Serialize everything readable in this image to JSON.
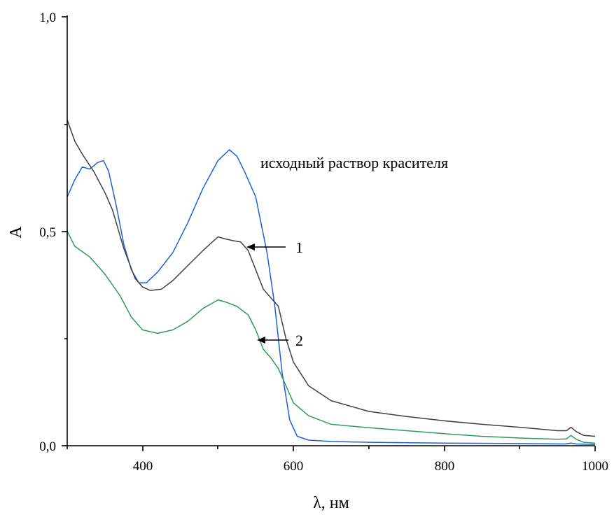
{
  "chart_data": {
    "type": "line",
    "xlabel": "λ, нм",
    "ylabel": "A",
    "xlim": [
      300,
      1000
    ],
    "ylim": [
      0,
      1.0
    ],
    "x_ticks": [
      "400",
      "600",
      "800",
      "1000"
    ],
    "y_ticks": [
      "0,0",
      "0,5",
      "1,0"
    ],
    "grid": false,
    "legend": "none",
    "annotations": [
      {
        "text": "исходный раствор красителя"
      },
      {
        "text": "1"
      },
      {
        "text": "2"
      }
    ],
    "series": [
      {
        "color": "#1f5fd6",
        "points": [
          [
            300,
            0.58
          ],
          [
            310,
            0.62
          ],
          [
            320,
            0.65
          ],
          [
            330,
            0.645
          ],
          [
            340,
            0.66
          ],
          [
            348,
            0.665
          ],
          [
            355,
            0.64
          ],
          [
            365,
            0.56
          ],
          [
            375,
            0.47
          ],
          [
            385,
            0.41
          ],
          [
            395,
            0.38
          ],
          [
            405,
            0.38
          ],
          [
            420,
            0.405
          ],
          [
            440,
            0.45
          ],
          [
            460,
            0.52
          ],
          [
            480,
            0.6
          ],
          [
            500,
            0.665
          ],
          [
            515,
            0.69
          ],
          [
            525,
            0.675
          ],
          [
            535,
            0.64
          ],
          [
            550,
            0.58
          ],
          [
            565,
            0.45
          ],
          [
            575,
            0.33
          ],
          [
            585,
            0.17
          ],
          [
            595,
            0.06
          ],
          [
            605,
            0.022
          ],
          [
            620,
            0.013
          ],
          [
            650,
            0.01
          ],
          [
            700,
            0.008
          ],
          [
            800,
            0.006
          ],
          [
            900,
            0.005
          ],
          [
            960,
            0.004
          ],
          [
            968,
            0.006
          ],
          [
            975,
            0.004
          ],
          [
            1000,
            0.003
          ]
        ]
      },
      {
        "color": "#404040",
        "points": [
          [
            300,
            0.76
          ],
          [
            310,
            0.71
          ],
          [
            320,
            0.68
          ],
          [
            335,
            0.64
          ],
          [
            350,
            0.59
          ],
          [
            360,
            0.55
          ],
          [
            375,
            0.46
          ],
          [
            390,
            0.39
          ],
          [
            400,
            0.37
          ],
          [
            410,
            0.362
          ],
          [
            425,
            0.365
          ],
          [
            440,
            0.385
          ],
          [
            460,
            0.42
          ],
          [
            480,
            0.455
          ],
          [
            500,
            0.487
          ],
          [
            510,
            0.482
          ],
          [
            520,
            0.478
          ],
          [
            530,
            0.475
          ],
          [
            540,
            0.455
          ],
          [
            550,
            0.41
          ],
          [
            560,
            0.365
          ],
          [
            570,
            0.345
          ],
          [
            580,
            0.325
          ],
          [
            590,
            0.25
          ],
          [
            600,
            0.195
          ],
          [
            620,
            0.14
          ],
          [
            650,
            0.105
          ],
          [
            700,
            0.08
          ],
          [
            750,
            0.068
          ],
          [
            800,
            0.058
          ],
          [
            850,
            0.05
          ],
          [
            900,
            0.043
          ],
          [
            950,
            0.035
          ],
          [
            962,
            0.035
          ],
          [
            968,
            0.043
          ],
          [
            975,
            0.033
          ],
          [
            985,
            0.024
          ],
          [
            1000,
            0.022
          ]
        ]
      },
      {
        "color": "#2e9a5e",
        "points": [
          [
            300,
            0.5
          ],
          [
            310,
            0.465
          ],
          [
            330,
            0.44
          ],
          [
            350,
            0.4
          ],
          [
            370,
            0.35
          ],
          [
            385,
            0.3
          ],
          [
            400,
            0.27
          ],
          [
            420,
            0.262
          ],
          [
            440,
            0.27
          ],
          [
            460,
            0.29
          ],
          [
            480,
            0.32
          ],
          [
            500,
            0.34
          ],
          [
            510,
            0.335
          ],
          [
            525,
            0.325
          ],
          [
            540,
            0.305
          ],
          [
            550,
            0.27
          ],
          [
            560,
            0.225
          ],
          [
            570,
            0.205
          ],
          [
            580,
            0.18
          ],
          [
            590,
            0.14
          ],
          [
            600,
            0.1
          ],
          [
            620,
            0.07
          ],
          [
            650,
            0.05
          ],
          [
            700,
            0.042
          ],
          [
            750,
            0.035
          ],
          [
            800,
            0.028
          ],
          [
            850,
            0.022
          ],
          [
            900,
            0.018
          ],
          [
            950,
            0.015
          ],
          [
            962,
            0.016
          ],
          [
            968,
            0.024
          ],
          [
            975,
            0.015
          ],
          [
            985,
            0.008
          ],
          [
            1000,
            0.006
          ]
        ]
      }
    ]
  }
}
